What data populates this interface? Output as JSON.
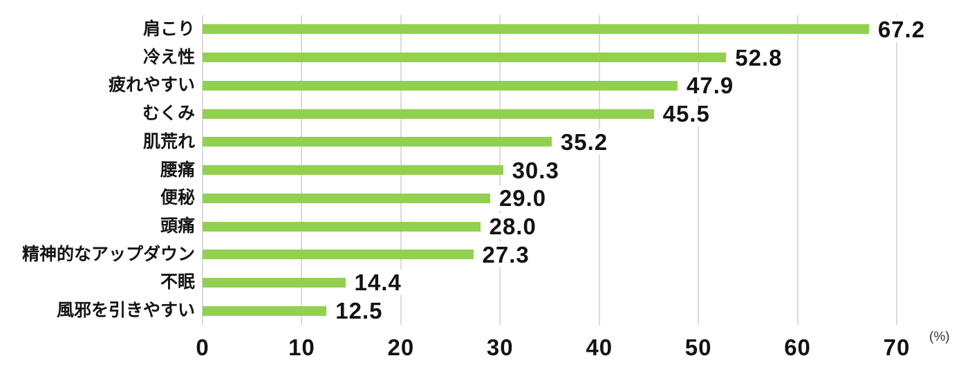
{
  "chart_data": {
    "type": "bar",
    "orientation": "horizontal",
    "categories": [
      "肩こり",
      "冷え性",
      "疲れやすい",
      "むくみ",
      "肌荒れ",
      "腰痛",
      "便秘",
      "頭痛",
      "精神的なアップダウン",
      "不眠",
      "風邪を引きやすい"
    ],
    "values": [
      67.2,
      52.8,
      47.9,
      45.5,
      35.2,
      30.3,
      29.0,
      28.0,
      27.3,
      14.4,
      12.5
    ],
    "value_labels": [
      "67.2",
      "52.8",
      "47.9",
      "45.5",
      "35.2",
      "30.3",
      "29.0",
      "28.0",
      "27.3",
      "14.4",
      "12.5"
    ],
    "xticks": [
      "0",
      "10",
      "20",
      "30",
      "40",
      "50",
      "60",
      "70"
    ],
    "xtick_values": [
      0,
      10,
      20,
      30,
      40,
      50,
      60,
      70
    ],
    "xlim": [
      0,
      70
    ],
    "unit_label": "(%)",
    "grid": true,
    "legend": false,
    "colors": {
      "bar": "#92d050",
      "gridline": "#dadada",
      "text": "#131313",
      "background": "#ffffff"
    }
  }
}
